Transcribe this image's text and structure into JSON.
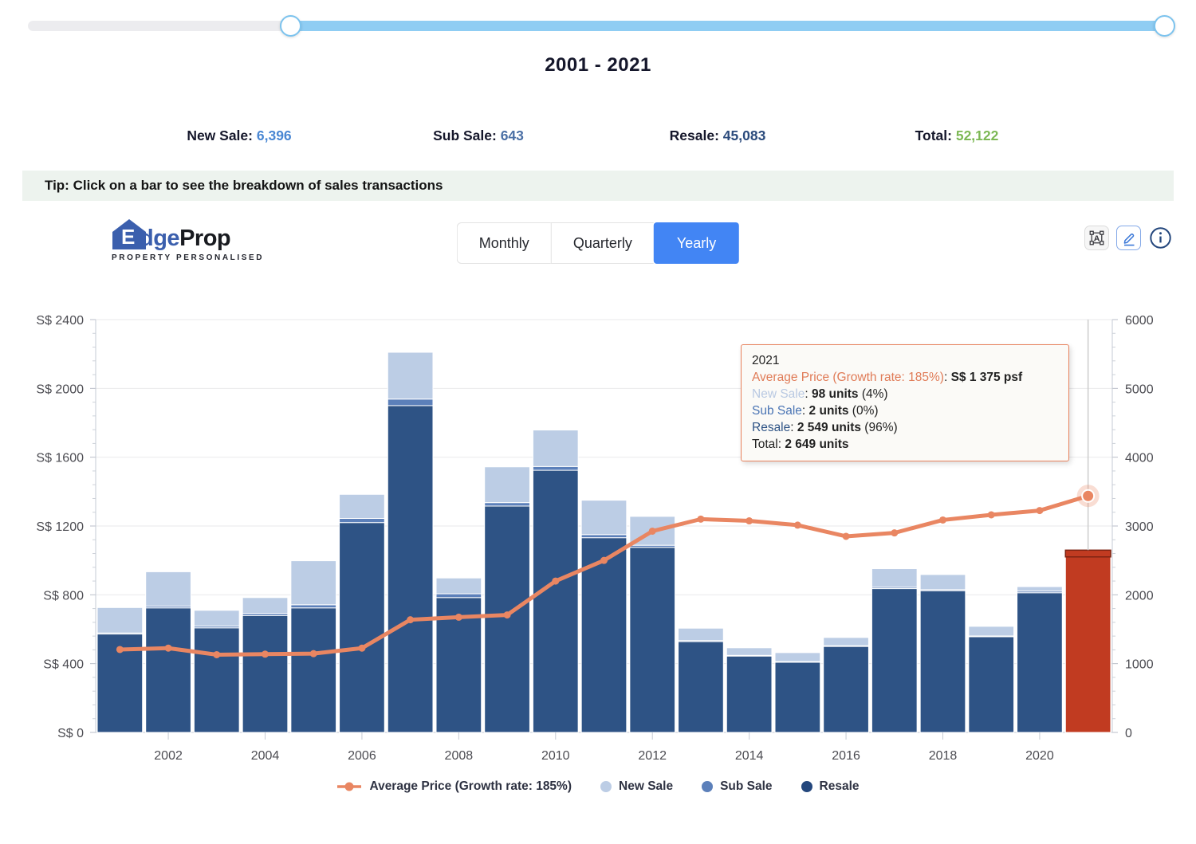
{
  "title": "2001 - 2021",
  "stats": [
    {
      "label": "New Sale:",
      "value": "6,396",
      "color": "#4a87d3"
    },
    {
      "label": "Sub Sale:",
      "value": "643",
      "color": "#4a6fa5"
    },
    {
      "label": "Resale:",
      "value": "45,083",
      "color": "#2b4b7c"
    },
    {
      "label": "Total:",
      "value": "52,122",
      "color": "#7cb854"
    }
  ],
  "tip": "Tip: Click on a bar to see the breakdown of sales transactions",
  "logo": {
    "house_letter": "E",
    "name_blue": "dge",
    "name_dark": "Prop",
    "tagline": "PROPERTY PERSONALISED"
  },
  "controls": {
    "tabs": [
      {
        "label": "Monthly",
        "active": false
      },
      {
        "label": "Quarterly",
        "active": false
      },
      {
        "label": "Yearly",
        "active": true
      }
    ]
  },
  "tooltip": {
    "title": "2021",
    "lines": [
      [
        {
          "t": "Average Price (Growth rate: 185%)",
          "c": "#e07b57"
        },
        {
          "t": ": "
        },
        {
          "t": "S$ 1 375 psf",
          "b": true
        }
      ],
      [
        {
          "t": "New Sale",
          "c": "#b9c9e2"
        },
        {
          "t": ": "
        },
        {
          "t": "98 units",
          "b": true
        },
        {
          "t": " (4%)"
        }
      ],
      [
        {
          "t": "Sub Sale",
          "c": "#4a74b4"
        },
        {
          "t": ": "
        },
        {
          "t": "2 units",
          "b": true
        },
        {
          "t": " (0%)"
        }
      ],
      [
        {
          "t": "Resale",
          "c": "#2e5385"
        },
        {
          "t": ": "
        },
        {
          "t": "2 549 units",
          "b": true
        },
        {
          "t": " (96%)"
        }
      ],
      [
        {
          "t": "Total: "
        },
        {
          "t": "2 649 units",
          "b": true
        }
      ]
    ]
  },
  "legend": [
    {
      "label": "Average Price (Growth rate: 185%)",
      "color": "#e98662",
      "marker": "line"
    },
    {
      "label": "New Sale",
      "color": "#bccde5",
      "marker": "dot"
    },
    {
      "label": "Sub Sale",
      "color": "#5c80ba",
      "marker": "dot"
    },
    {
      "label": "Resale",
      "color": "#24477d",
      "marker": "dot"
    }
  ],
  "chart_data": {
    "type": "stacked-bar+line",
    "categories": [
      2001,
      2002,
      2003,
      2004,
      2005,
      2006,
      2007,
      2008,
      2009,
      2010,
      2011,
      2012,
      2013,
      2014,
      2015,
      2016,
      2017,
      2018,
      2019,
      2020,
      2021
    ],
    "series": [
      {
        "name": "New Sale",
        "type": "bar",
        "axis": "right",
        "color": "#bccde5",
        "values": [
          370,
          500,
          230,
          230,
          640,
          350,
          680,
          230,
          520,
          530,
          500,
          420,
          180,
          110,
          130,
          120,
          270,
          220,
          140,
          65,
          98
        ]
      },
      {
        "name": "Sub Sale",
        "type": "bar",
        "axis": "right",
        "color": "#5c80ba",
        "values": [
          15,
          25,
          25,
          30,
          45,
          60,
          95,
          55,
          50,
          55,
          45,
          30,
          15,
          10,
          10,
          10,
          20,
          15,
          12,
          24,
          2
        ]
      },
      {
        "name": "Resale",
        "type": "bar",
        "axis": "right",
        "color": "#2e5385",
        "values": [
          1430,
          1810,
          1520,
          1700,
          1810,
          3050,
          4750,
          1960,
          3290,
          3810,
          2830,
          2690,
          1320,
          1110,
          1020,
          1250,
          2090,
          2060,
          1390,
          2030,
          2549
        ]
      },
      {
        "name": "Average Price (Growth rate: 185%)",
        "type": "line",
        "axis": "left",
        "color": "#e98662",
        "values": [
          482,
          490,
          452,
          455,
          458,
          490,
          655,
          670,
          683,
          880,
          1000,
          1170,
          1240,
          1230,
          1205,
          1140,
          1160,
          1235,
          1265,
          1290,
          1375
        ]
      }
    ],
    "left_axis": {
      "max": 2400,
      "step": 400,
      "tick_labels": [
        "S$ 0",
        "S$ 400",
        "S$ 800",
        "S$ 1200",
        "S$ 1600",
        "S$ 2000",
        "S$ 2400"
      ]
    },
    "right_axis": {
      "max": 6000,
      "step": 1000,
      "tick_labels": [
        "0",
        "1000",
        "2000",
        "3000",
        "4000",
        "5000",
        "6000"
      ]
    },
    "x_tick_years": [
      2002,
      2004,
      2006,
      2008,
      2010,
      2012,
      2014,
      2016,
      2018,
      2020
    ],
    "highlight_year": 2021,
    "highlight_color": "#c13b21",
    "highlight_stroke": "#7e2413",
    "grid": "horizontal",
    "legend_position": "bottom"
  }
}
